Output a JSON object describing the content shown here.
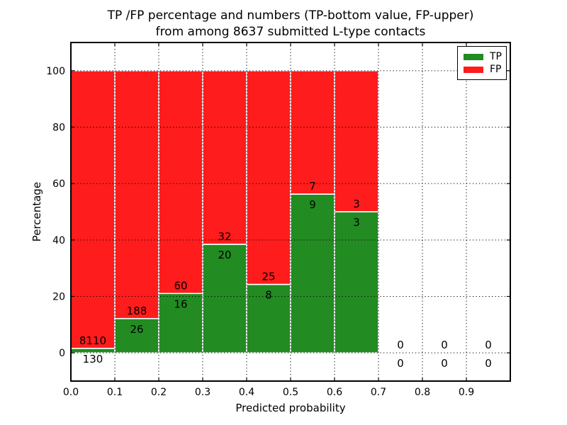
{
  "figure": {
    "title_line1": "TP /FP percentage and numbers (TP-bottom value, FP-upper)",
    "title_line2": "from among 8637 submitted L-type contacts"
  },
  "chart_data": {
    "type": "bar",
    "stacked": true,
    "normalized_to_percent": true,
    "title": "TP /FP percentage and numbers (TP-bottom value, FP-upper)\nfrom among 8637 submitted L-type contacts",
    "total_submitted": 8637,
    "xlabel": "Predicted probability",
    "ylabel": "Percentage",
    "xlim": [
      0.0,
      1.0
    ],
    "ylim": [
      -10,
      110
    ],
    "bin_width": 0.1,
    "grid": "dotted",
    "legend_position": "upper right",
    "categories": [
      "0.0",
      "0.1",
      "0.2",
      "0.3",
      "0.4",
      "0.5",
      "0.6",
      "0.7",
      "0.8",
      "0.9"
    ],
    "x_ticks": [
      "0.0",
      "0.1",
      "0.2",
      "0.3",
      "0.4",
      "0.5",
      "0.6",
      "0.7",
      "0.8",
      "0.9"
    ],
    "y_ticks": [
      0,
      20,
      40,
      60,
      80,
      100
    ],
    "series": [
      {
        "name": "TP",
        "color": "#228b22",
        "position": "bottom",
        "values": [
          130,
          26,
          16,
          20,
          8,
          9,
          3,
          0,
          0,
          0
        ]
      },
      {
        "name": "FP",
        "color": "#ff1c1c",
        "position": "top",
        "values": [
          8110,
          188,
          60,
          32,
          25,
          7,
          3,
          0,
          0,
          0
        ]
      }
    ],
    "tp_percent_of_bin": [
      1.58,
      12.15,
      21.05,
      38.46,
      24.24,
      56.25,
      50.0,
      0,
      0,
      0
    ],
    "colors": {
      "frame": "#000000",
      "grid": "#000000",
      "bar_edge": "#ffffff",
      "background": "#ffffff"
    }
  }
}
